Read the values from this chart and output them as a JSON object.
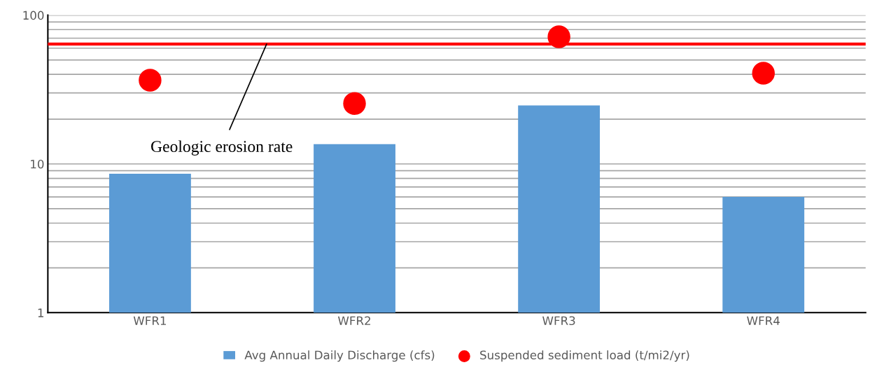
{
  "chart_data": {
    "type": "bar",
    "categories": [
      "WFR1",
      "WFR2",
      "WFR3",
      "WFR4"
    ],
    "series": [
      {
        "name": "Avg Annual Daily Discharge (cfs)",
        "color": "#5b9bd5",
        "values": [
          8.6,
          13.6,
          24.7,
          6.0
        ]
      },
      {
        "name": "Suspended sediment load (t/mi2/yr)",
        "type": "scatter",
        "color": "#ff0000",
        "values": [
          36.5,
          25.5,
          71.5,
          40.7
        ]
      }
    ],
    "log": "y",
    "ylim": [
      1,
      100
    ],
    "yticks": [
      1,
      10,
      100
    ],
    "grid": "y",
    "legend": "bottom",
    "marker": "circle",
    "ref_lines": [
      {
        "axis": "y",
        "value": 64,
        "label": "Geologic erosion rate",
        "color": "#ff0000"
      }
    ]
  }
}
